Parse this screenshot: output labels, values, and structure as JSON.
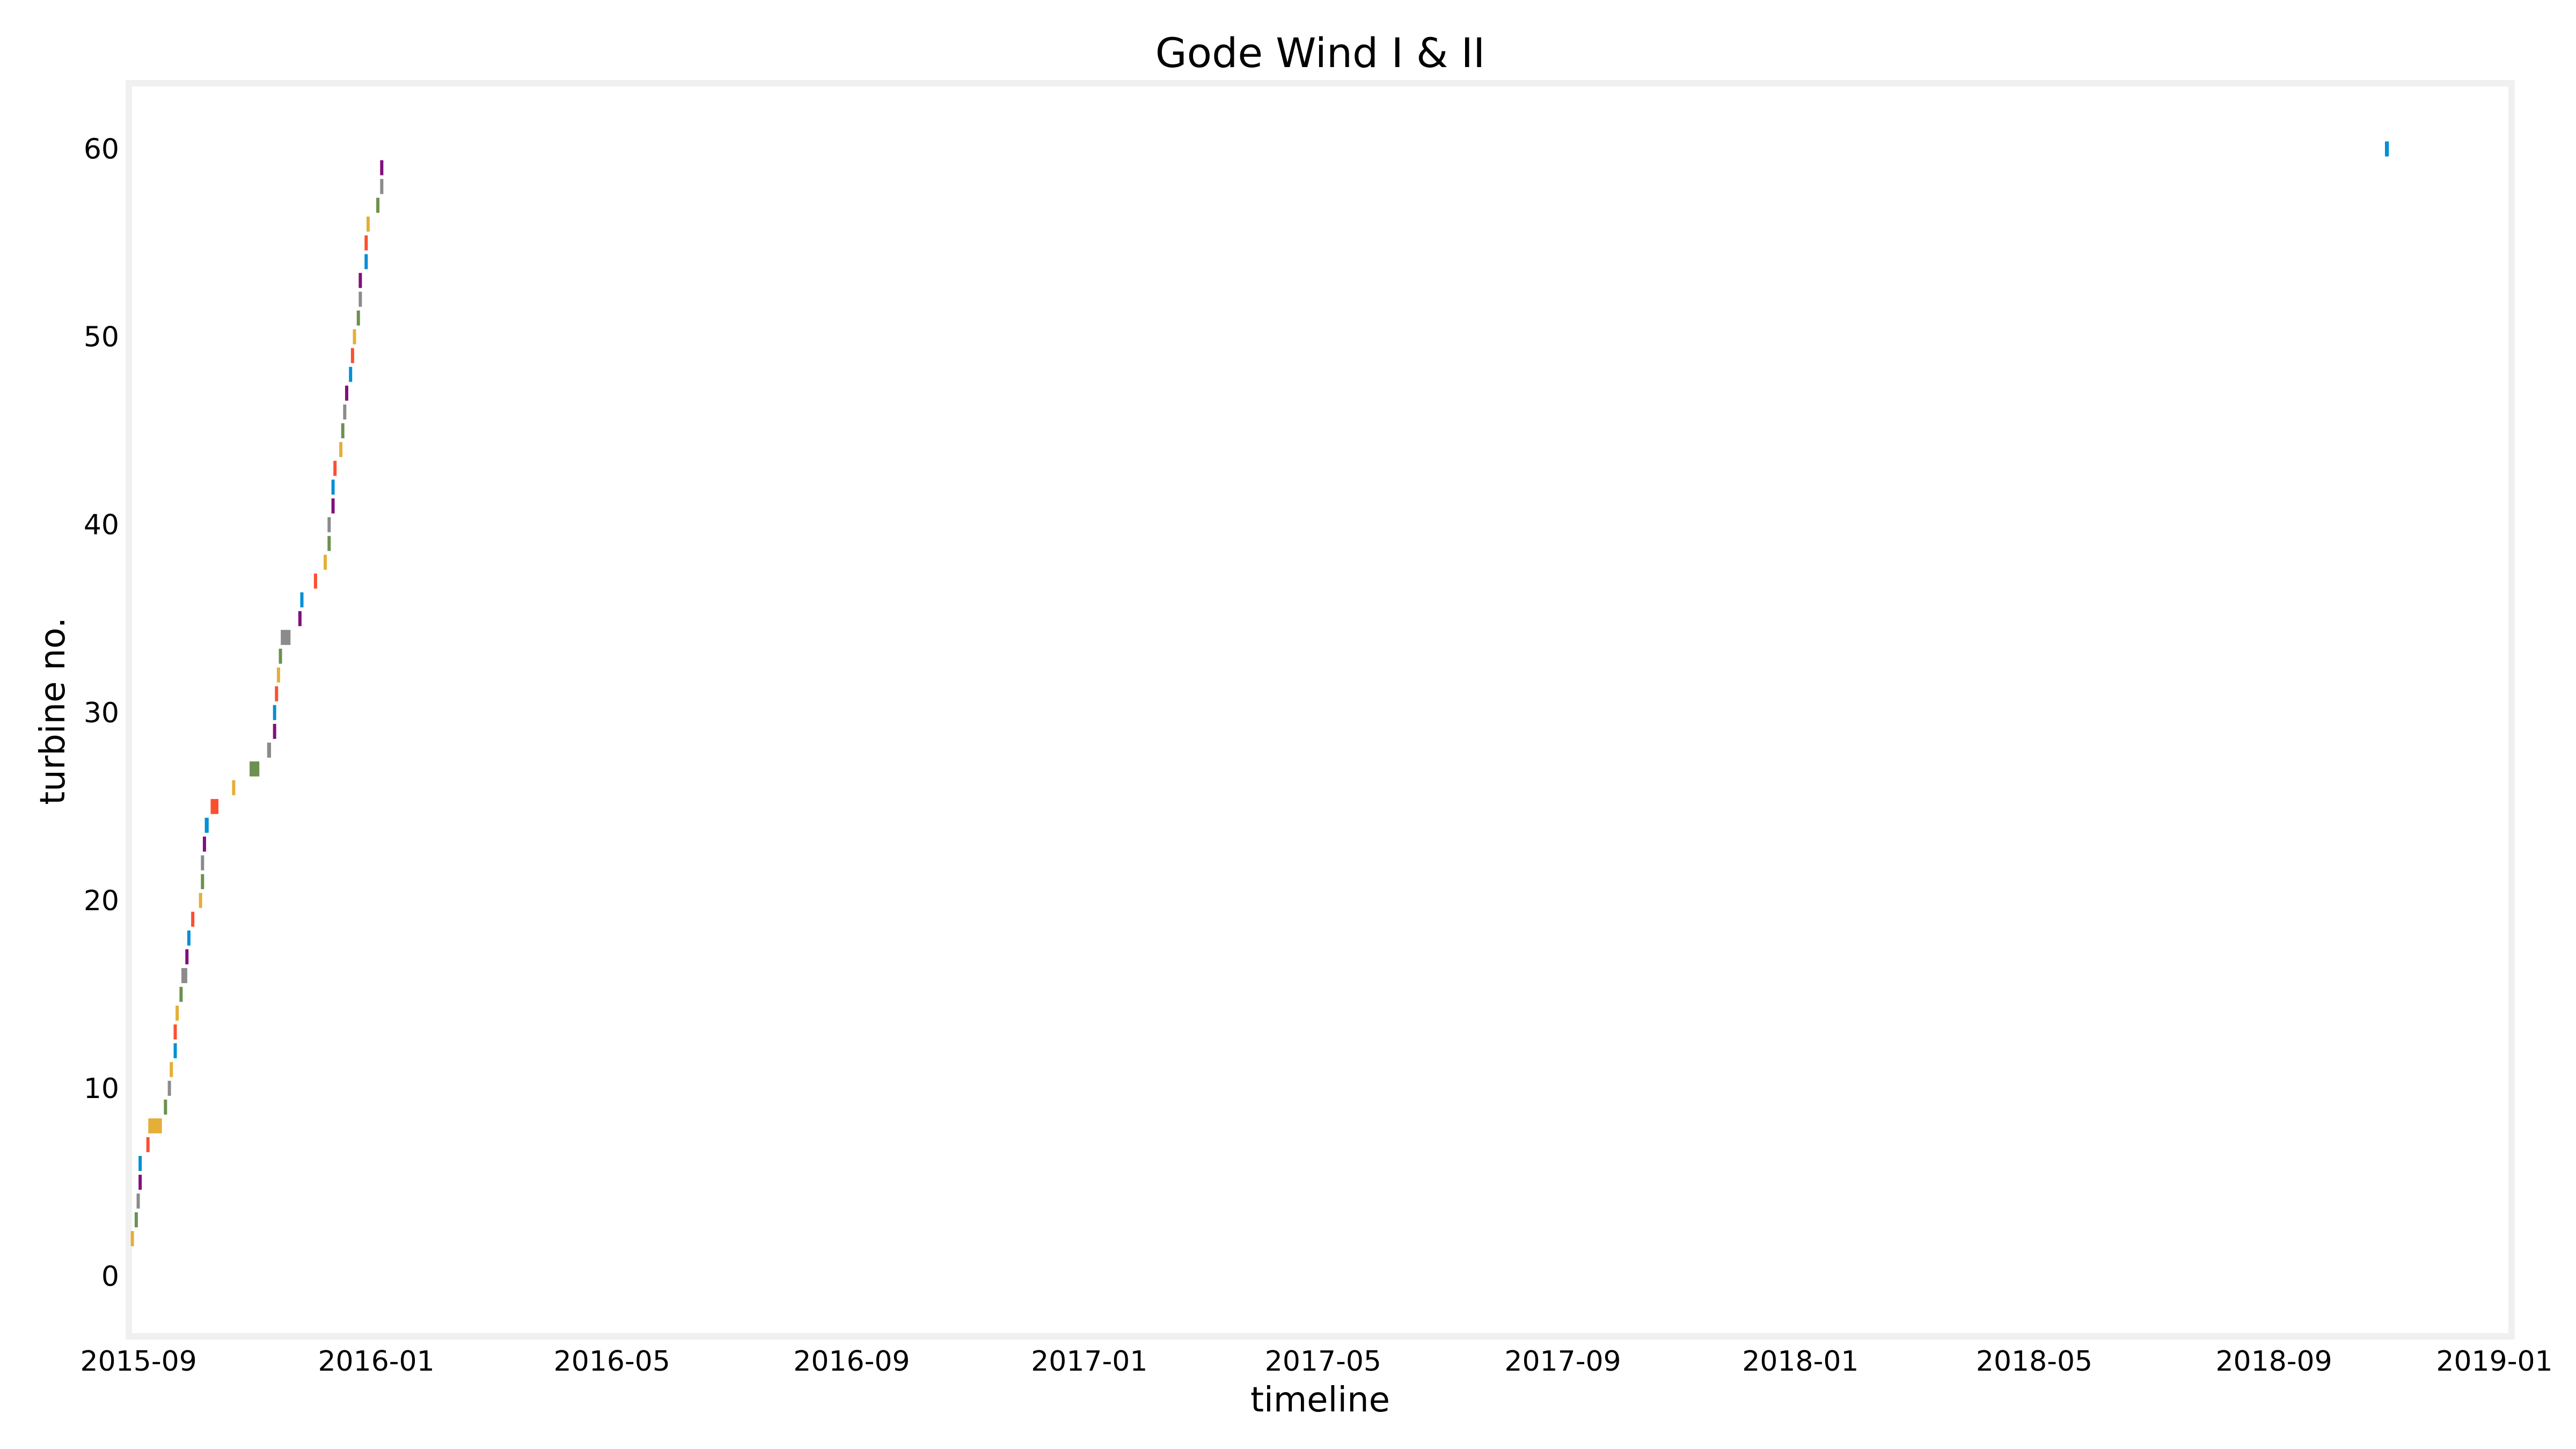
{
  "chart_data": {
    "type": "bar",
    "subtype": "horizontal-gantt",
    "title": "Gode Wind I & II",
    "xlabel": "timeline",
    "ylabel": "turbine no.",
    "xlim": [
      "2015-08-27",
      "2019-01-01"
    ],
    "ylim": [
      -3.2,
      63.5
    ],
    "xticks": [
      "2015-09",
      "2016-01",
      "2016-05",
      "2016-09",
      "2017-01",
      "2017-05",
      "2017-09",
      "2018-01",
      "2018-05",
      "2018-09",
      "2019-01"
    ],
    "yticks": [
      0,
      10,
      20,
      30,
      40,
      50,
      60
    ],
    "grid": false,
    "bar_height": 0.8,
    "colors": [
      "#e5ae38",
      "#6d904f",
      "#8b8b8b",
      "#30a2da",
      "#fc4f30",
      "#e5ae38",
      "#6d904f",
      "#8b8b8b",
      "#30a2da",
      "#fc4f30"
    ],
    "palette": [
      "#008fd5",
      "#fc4f30",
      "#e5ae38",
      "#6d904f",
      "#8b8b8b",
      "#810f7c"
    ],
    "frame_color": "#f0f0f0",
    "series": [
      {
        "turbine": 2,
        "start": "2015-08-28",
        "end": "2015-08-29",
        "color": "#e5ae38"
      },
      {
        "turbine": 3,
        "start": "2015-08-30",
        "end": "2015-08-31",
        "color": "#6d904f"
      },
      {
        "turbine": 4,
        "start": "2015-08-31",
        "end": "2015-09-01",
        "color": "#8b8b8b"
      },
      {
        "turbine": 5,
        "start": "2015-09-01",
        "end": "2015-09-02",
        "color": "#810f7c"
      },
      {
        "turbine": 6,
        "start": "2015-09-01",
        "end": "2015-09-02",
        "color": "#008fd5"
      },
      {
        "turbine": 7,
        "start": "2015-09-05",
        "end": "2015-09-06",
        "color": "#fc4f30"
      },
      {
        "turbine": 8,
        "start": "2015-09-06",
        "end": "2015-09-13",
        "color": "#e5ae38"
      },
      {
        "turbine": 9,
        "start": "2015-09-14",
        "end": "2015-09-15",
        "color": "#6d904f"
      },
      {
        "turbine": 10,
        "start": "2015-09-16",
        "end": "2015-09-17",
        "color": "#8b8b8b"
      },
      {
        "turbine": 11,
        "start": "2015-09-17",
        "end": "2015-09-18",
        "color": "#e5ae38"
      },
      {
        "turbine": 12,
        "start": "2015-09-19",
        "end": "2015-09-20",
        "color": "#008fd5"
      },
      {
        "turbine": 13,
        "start": "2015-09-19",
        "end": "2015-09-20",
        "color": "#fc4f30"
      },
      {
        "turbine": 14,
        "start": "2015-09-20",
        "end": "2015-09-21",
        "color": "#e5ae38"
      },
      {
        "turbine": 15,
        "start": "2015-09-22",
        "end": "2015-09-23",
        "color": "#6d904f"
      },
      {
        "turbine": 16,
        "start": "2015-09-23",
        "end": "2015-09-26",
        "color": "#8b8b8b"
      },
      {
        "turbine": 17,
        "start": "2015-09-25",
        "end": "2015-09-26",
        "color": "#810f7c"
      },
      {
        "turbine": 18,
        "start": "2015-09-26",
        "end": "2015-09-27",
        "color": "#008fd5"
      },
      {
        "turbine": 19,
        "start": "2015-09-28",
        "end": "2015-09-29",
        "color": "#fc4f30"
      },
      {
        "turbine": 20,
        "start": "2015-10-02",
        "end": "2015-10-03",
        "color": "#e5ae38"
      },
      {
        "turbine": 21,
        "start": "2015-10-03",
        "end": "2015-10-04",
        "color": "#6d904f"
      },
      {
        "turbine": 22,
        "start": "2015-10-03",
        "end": "2015-10-04",
        "color": "#8b8b8b"
      },
      {
        "turbine": 23,
        "start": "2015-10-04",
        "end": "2015-10-05",
        "color": "#810f7c"
      },
      {
        "turbine": 24,
        "start": "2015-10-05",
        "end": "2015-10-07",
        "color": "#008fd5"
      },
      {
        "turbine": 25,
        "start": "2015-10-08",
        "end": "2015-10-12",
        "color": "#fc4f30"
      },
      {
        "turbine": 26,
        "start": "2015-10-19",
        "end": "2015-10-20",
        "color": "#e5ae38"
      },
      {
        "turbine": 27,
        "start": "2015-10-28",
        "end": "2015-11-02",
        "color": "#6d904f"
      },
      {
        "turbine": 28,
        "start": "2015-11-06",
        "end": "2015-11-08",
        "color": "#8b8b8b"
      },
      {
        "turbine": 29,
        "start": "2015-11-09",
        "end": "2015-11-10",
        "color": "#810f7c"
      },
      {
        "turbine": 30,
        "start": "2015-11-09",
        "end": "2015-11-10",
        "color": "#008fd5"
      },
      {
        "turbine": 31,
        "start": "2015-11-10",
        "end": "2015-11-11",
        "color": "#fc4f30"
      },
      {
        "turbine": 32,
        "start": "2015-11-11",
        "end": "2015-11-12",
        "color": "#e5ae38"
      },
      {
        "turbine": 33,
        "start": "2015-11-12",
        "end": "2015-11-13",
        "color": "#6d904f"
      },
      {
        "turbine": 34,
        "start": "2015-11-13",
        "end": "2015-11-18",
        "color": "#8b8b8b"
      },
      {
        "turbine": 35,
        "start": "2015-11-22",
        "end": "2015-11-23",
        "color": "#810f7c"
      },
      {
        "turbine": 36,
        "start": "2015-11-23",
        "end": "2015-11-24",
        "color": "#008fd5"
      },
      {
        "turbine": 37,
        "start": "2015-11-30",
        "end": "2015-12-01",
        "color": "#fc4f30"
      },
      {
        "turbine": 38,
        "start": "2015-12-05",
        "end": "2015-12-06",
        "color": "#e5ae38"
      },
      {
        "turbine": 39,
        "start": "2015-12-07",
        "end": "2015-12-08",
        "color": "#6d904f"
      },
      {
        "turbine": 40,
        "start": "2015-12-07",
        "end": "2015-12-08",
        "color": "#8b8b8b"
      },
      {
        "turbine": 41,
        "start": "2015-12-09",
        "end": "2015-12-10",
        "color": "#810f7c"
      },
      {
        "turbine": 42,
        "start": "2015-12-09",
        "end": "2015-12-10",
        "color": "#008fd5"
      },
      {
        "turbine": 43,
        "start": "2015-12-10",
        "end": "2015-12-11",
        "color": "#fc4f30"
      },
      {
        "turbine": 44,
        "start": "2015-12-13",
        "end": "2015-12-14",
        "color": "#e5ae38"
      },
      {
        "turbine": 45,
        "start": "2015-12-14",
        "end": "2015-12-15",
        "color": "#6d904f"
      },
      {
        "turbine": 46,
        "start": "2015-12-15",
        "end": "2015-12-16",
        "color": "#8b8b8b"
      },
      {
        "turbine": 47,
        "start": "2015-12-16",
        "end": "2015-12-17",
        "color": "#810f7c"
      },
      {
        "turbine": 48,
        "start": "2015-12-18",
        "end": "2015-12-19",
        "color": "#008fd5"
      },
      {
        "turbine": 49,
        "start": "2015-12-19",
        "end": "2015-12-20",
        "color": "#fc4f30"
      },
      {
        "turbine": 50,
        "start": "2015-12-20",
        "end": "2015-12-21",
        "color": "#e5ae38"
      },
      {
        "turbine": 51,
        "start": "2015-12-22",
        "end": "2015-12-23",
        "color": "#6d904f"
      },
      {
        "turbine": 52,
        "start": "2015-12-23",
        "end": "2015-12-24",
        "color": "#8b8b8b"
      },
      {
        "turbine": 53,
        "start": "2015-12-23",
        "end": "2015-12-24",
        "color": "#810f7c"
      },
      {
        "turbine": 54,
        "start": "2015-12-26",
        "end": "2015-12-27",
        "color": "#008fd5"
      },
      {
        "turbine": 55,
        "start": "2015-12-26",
        "end": "2015-12-27",
        "color": "#fc4f30"
      },
      {
        "turbine": 56,
        "start": "2015-12-27",
        "end": "2015-12-28",
        "color": "#e5ae38"
      },
      {
        "turbine": 57,
        "start": "2016-01-01",
        "end": "2016-01-02",
        "color": "#6d904f"
      },
      {
        "turbine": 58,
        "start": "2016-01-03",
        "end": "2016-01-04",
        "color": "#8b8b8b"
      },
      {
        "turbine": 59,
        "start": "2016-01-03",
        "end": "2016-01-04",
        "color": "#810f7c"
      },
      {
        "turbine": 60,
        "start": "2018-10-28",
        "end": "2018-10-30",
        "color": "#008fd5"
      }
    ]
  }
}
